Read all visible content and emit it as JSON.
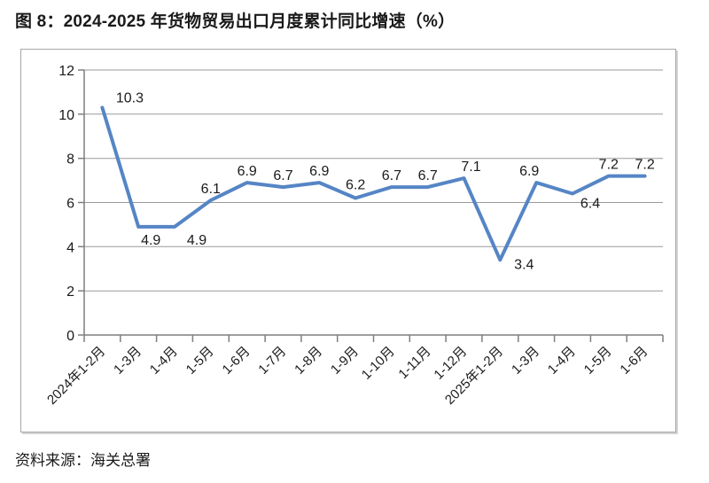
{
  "header": {
    "title": "图 8：2024-2025 年货物贸易出口月度累计同比增速（%）"
  },
  "footer": {
    "source": "资料来源：海关总署"
  },
  "chart_data": {
    "type": "line",
    "title": "2024-2025 年货物贸易出口月度累计同比增速（%）",
    "categories": [
      "2024年1-2月",
      "1-3月",
      "1-4月",
      "1-5月",
      "1-6月",
      "1-7月",
      "1-8月",
      "1-9月",
      "1-10月",
      "1-11月",
      "1-12月",
      "2025年1-2月",
      "1-3月",
      "1-4月",
      "1-5月",
      "1-6月"
    ],
    "values": [
      10.3,
      4.9,
      4.9,
      6.1,
      6.9,
      6.7,
      6.9,
      6.2,
      6.7,
      6.7,
      7.1,
      3.4,
      6.9,
      6.4,
      7.2,
      7.2
    ],
    "xlabel": "",
    "ylabel": "",
    "ylim": [
      0,
      12
    ],
    "ytick_step": 2,
    "yticks": [
      0,
      2,
      4,
      6,
      8,
      10,
      12
    ],
    "grid": true,
    "legend": "none",
    "data_labels": true,
    "colors": {
      "line": "#5585c5",
      "text": "#1a1a1a",
      "axis": "#7f7f7f",
      "grid": "#9a9a9a",
      "frame": "#a6a6a6"
    }
  }
}
